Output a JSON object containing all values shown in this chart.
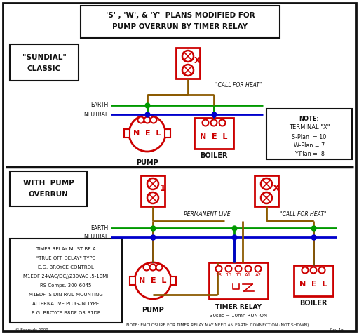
{
  "bg_color": "#ffffff",
  "red": "#cc0000",
  "green": "#009900",
  "blue": "#0000cc",
  "brown": "#8B5A00",
  "dark": "#111111",
  "title_line1": "'S' , 'W', & 'Y'  PLANS MODIFIED FOR",
  "title_line2": "PUMP OVERRUN BY TIMER RELAY",
  "info_lines": [
    "TIMER RELAY MUST BE A",
    "\"TRUE OFF DELAY\" TYPE",
    "E.G. BROYCE CONTROL",
    "M1EDF 24VAC/DC//230VAC .5-10MI",
    "RS Comps. 300-6045",
    "M1EDF IS DIN RAIL MOUNTING",
    "ALTERNATIVE PLUG-IN TYPE",
    "E.G. BROYCE B8DF OR B1DF"
  ]
}
